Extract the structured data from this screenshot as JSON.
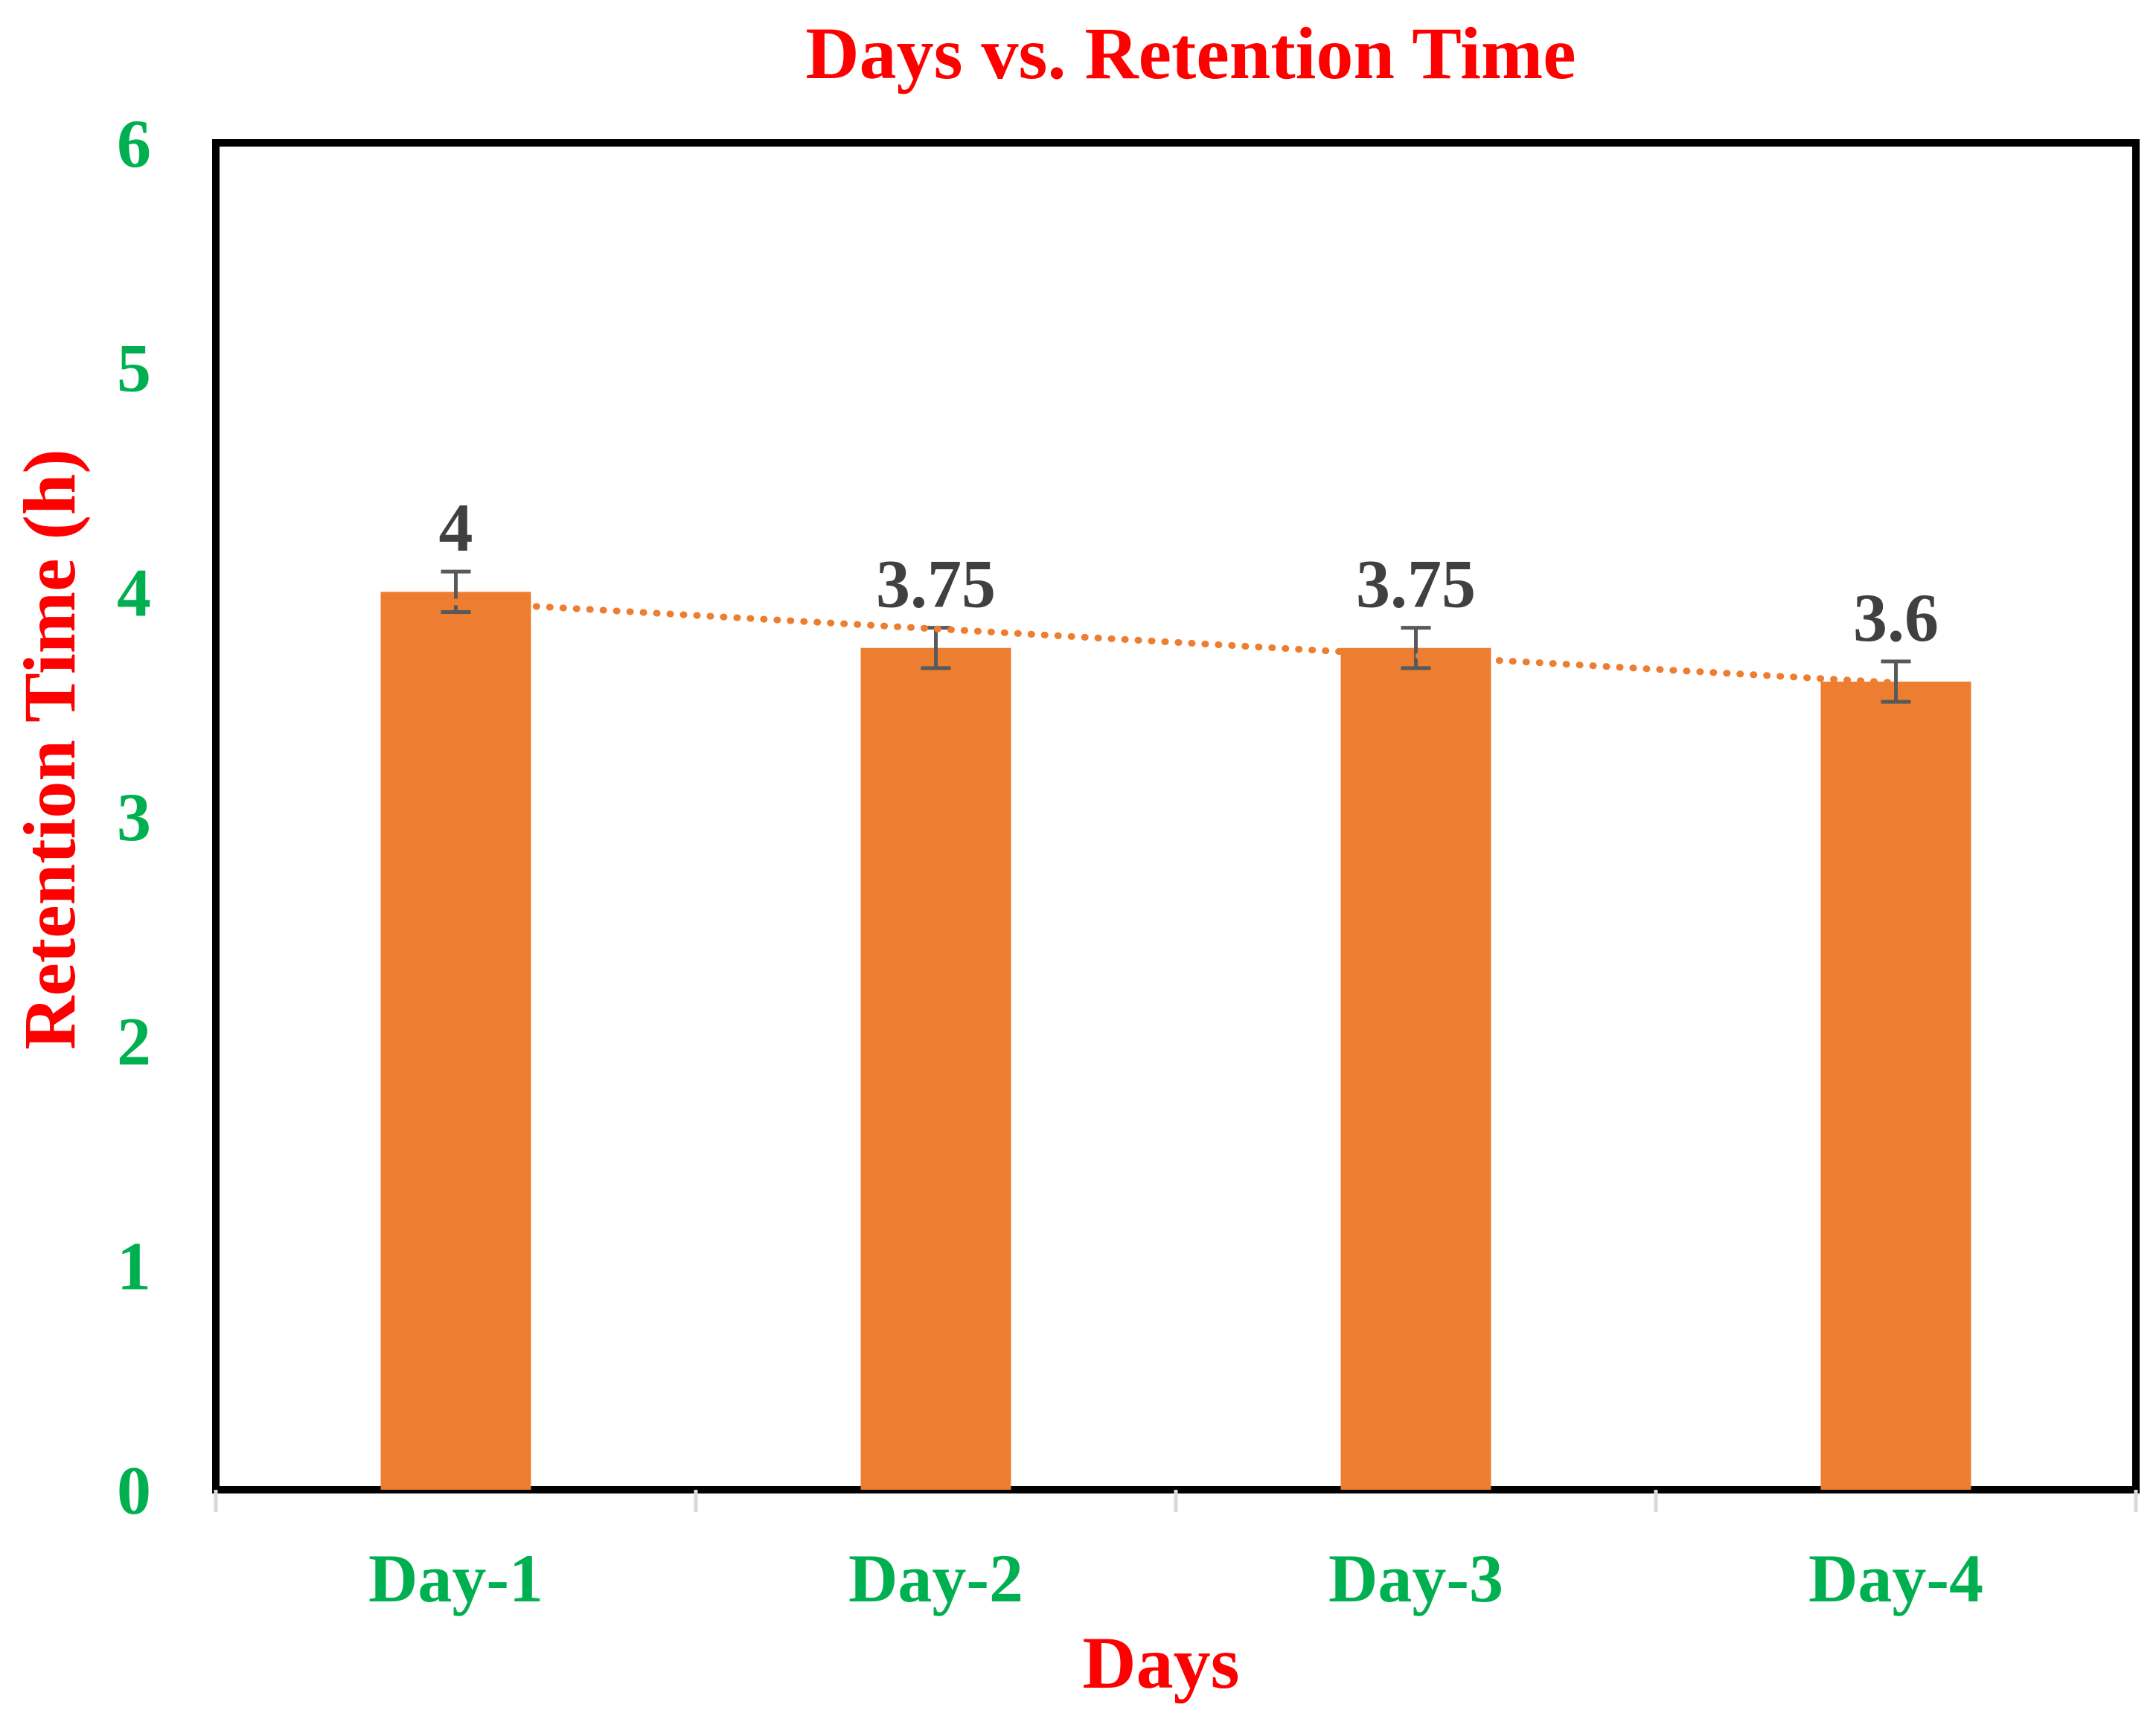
{
  "chart_data": {
    "type": "bar",
    "title": "Days vs. Retention Time",
    "xlabel": "Days",
    "ylabel": "Retention Time (h)",
    "categories": [
      "Day-1",
      "Day-2",
      "Day-3",
      "Day-4"
    ],
    "values": [
      4,
      3.75,
      3.75,
      3.6
    ],
    "data_labels": [
      "4",
      "3.75",
      "3.75",
      "3.6"
    ],
    "error_bars": [
      0.09,
      0.09,
      0.09,
      0.09
    ],
    "ylim": [
      0,
      6
    ],
    "yticks": [
      "0",
      "1",
      "2",
      "3",
      "4",
      "5",
      "6"
    ],
    "trendline": {
      "style": "dotted",
      "kind": "linear"
    },
    "grid": false,
    "legend": "none",
    "colors": {
      "bar": "#ED7D31",
      "trendline": "#ED7D31",
      "error_bar": "#595959",
      "title": "#FF0000",
      "axis_title": "#FF0000",
      "tick_label": "#00B050",
      "category_label": "#00B050",
      "data_label": "#404040",
      "axis": "#000000"
    }
  }
}
